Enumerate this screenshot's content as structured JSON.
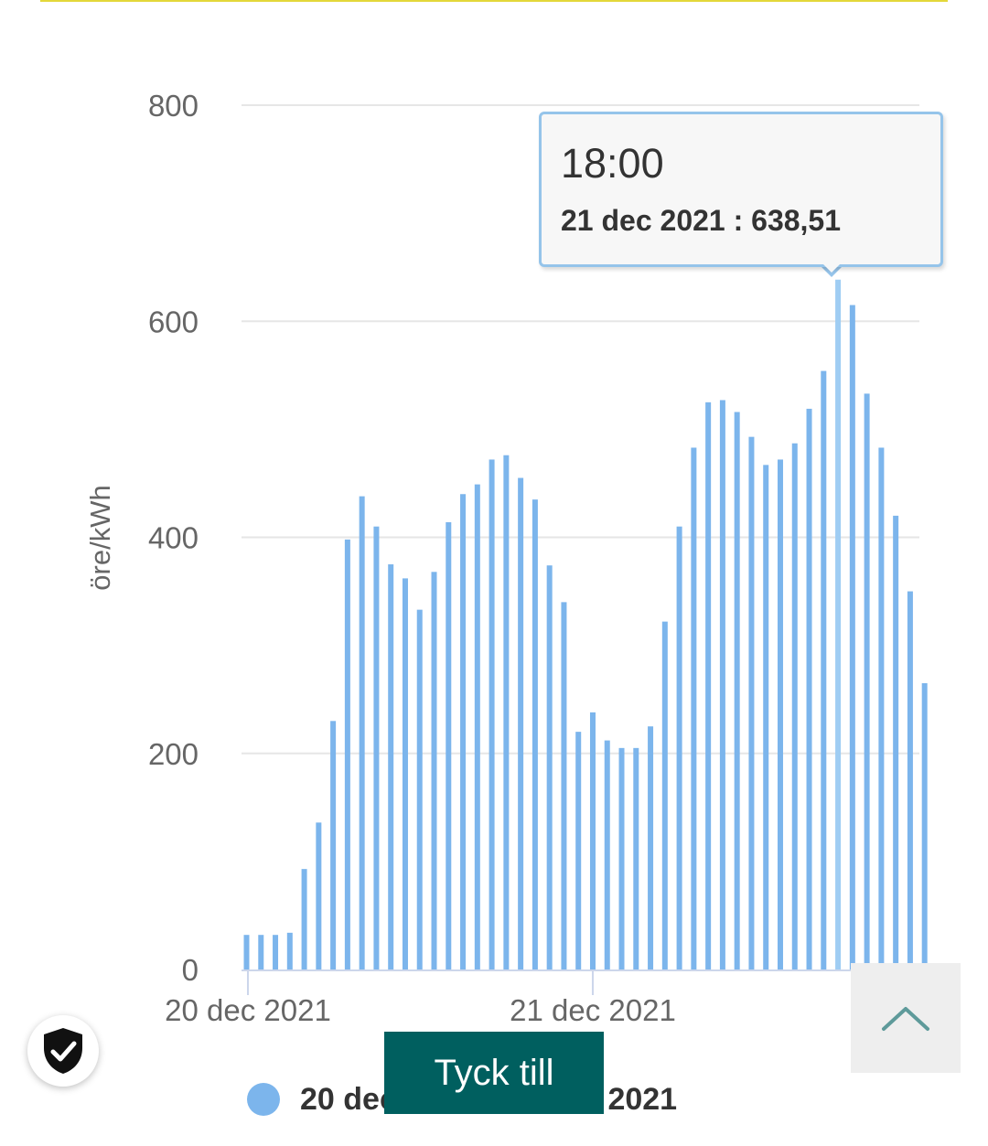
{
  "chart_data": {
    "type": "bar",
    "ylabel": "öre/kWh",
    "ylim": [
      0,
      800
    ],
    "y_ticks": [
      "0",
      "200",
      "400",
      "600",
      "800"
    ],
    "x_tick_labels": [
      "20 dec 2021",
      "21 dec 2021"
    ],
    "series": [
      {
        "values": [
          32,
          32,
          32,
          34,
          93,
          136,
          230,
          398,
          438,
          410,
          375,
          362,
          333,
          368,
          414,
          440,
          449,
          472,
          476,
          455,
          435,
          374,
          340,
          220,
          238,
          212,
          205,
          205,
          225,
          322,
          410,
          483,
          525,
          527,
          516,
          493,
          467,
          472,
          487,
          519,
          554,
          638.51,
          615,
          533,
          483,
          420,
          350,
          265
        ],
        "color": "#7cb5ec"
      }
    ],
    "highlight_index": 41,
    "grid": true
  },
  "tooltip": {
    "time": "18:00",
    "date": "21 dec 2021",
    "value": "638,51"
  },
  "legend": {
    "text": "20 dec 2021 - 21 dec 2021",
    "color": "#7cb5ec"
  },
  "feedback_button": {
    "label": "Tyck till",
    "color": "#005f5f"
  },
  "icons": {
    "scroll_top": "chevron-up-icon",
    "security": "shield-check-icon"
  }
}
